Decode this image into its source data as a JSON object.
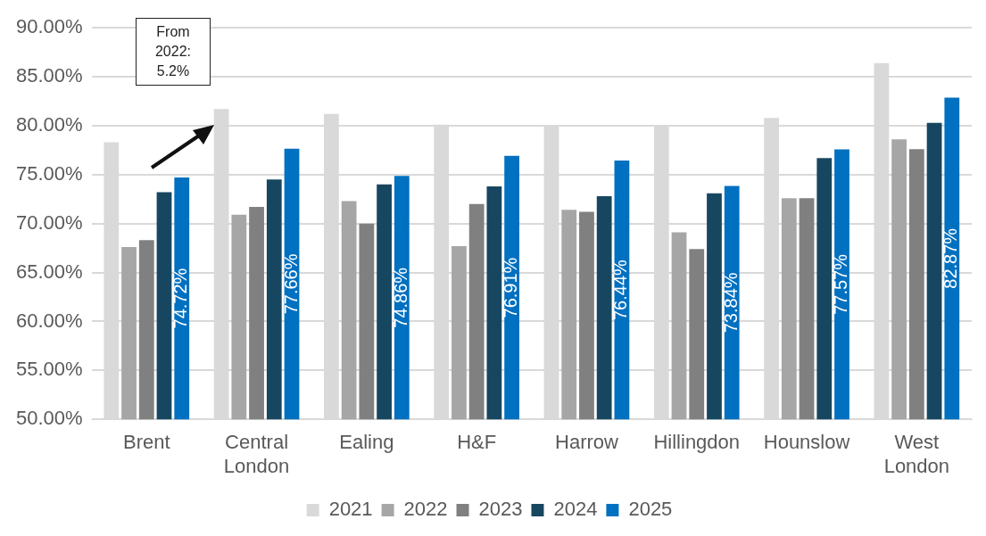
{
  "chart_data": {
    "type": "bar",
    "categories": [
      "Brent",
      "Central London",
      "Ealing",
      "H&F",
      "Harrow",
      "Hillingdon",
      "Hounslow",
      "West London"
    ],
    "series": [
      {
        "name": "2021",
        "color": "#d9d9d9",
        "values": [
          78.3,
          81.7,
          81.2,
          80.1,
          79.9,
          79.9,
          80.8,
          86.4
        ]
      },
      {
        "name": "2022",
        "color": "#a6a6a6",
        "values": [
          67.6,
          70.9,
          72.3,
          67.7,
          71.4,
          69.1,
          72.6,
          78.6
        ]
      },
      {
        "name": "2023",
        "color": "#808080",
        "values": [
          68.3,
          71.7,
          70.0,
          72.0,
          71.2,
          67.4,
          72.6,
          77.6
        ]
      },
      {
        "name": "2024",
        "color": "#174760",
        "values": [
          73.2,
          74.5,
          74.0,
          73.8,
          72.8,
          73.1,
          76.7,
          80.3
        ]
      },
      {
        "name": "2025",
        "color": "#0070c0",
        "values": [
          74.72,
          77.66,
          74.86,
          76.91,
          76.44,
          73.84,
          77.57,
          82.87
        ],
        "value_labels": [
          "74.72%",
          "77.66%",
          "74.86%",
          "76.91%",
          "76.44%",
          "73.84%",
          "77.57%",
          "82.87%"
        ]
      }
    ],
    "ylim": [
      50,
      90
    ],
    "yticks": [
      {
        "value": 50,
        "label": "50.00%"
      },
      {
        "value": 55,
        "label": "55.00%"
      },
      {
        "value": 60,
        "label": "60.00%"
      },
      {
        "value": 65,
        "label": "65.00%"
      },
      {
        "value": 70,
        "label": "70.00%"
      },
      {
        "value": 75,
        "label": "75.00%"
      },
      {
        "value": 80,
        "label": "80.00%"
      },
      {
        "value": 85,
        "label": "85.00%"
      },
      {
        "value": 90,
        "label": "90.00%"
      }
    ],
    "grid": "y",
    "legend": "bottom",
    "annotations": [
      "From\n2022:\n5.2%"
    ]
  }
}
